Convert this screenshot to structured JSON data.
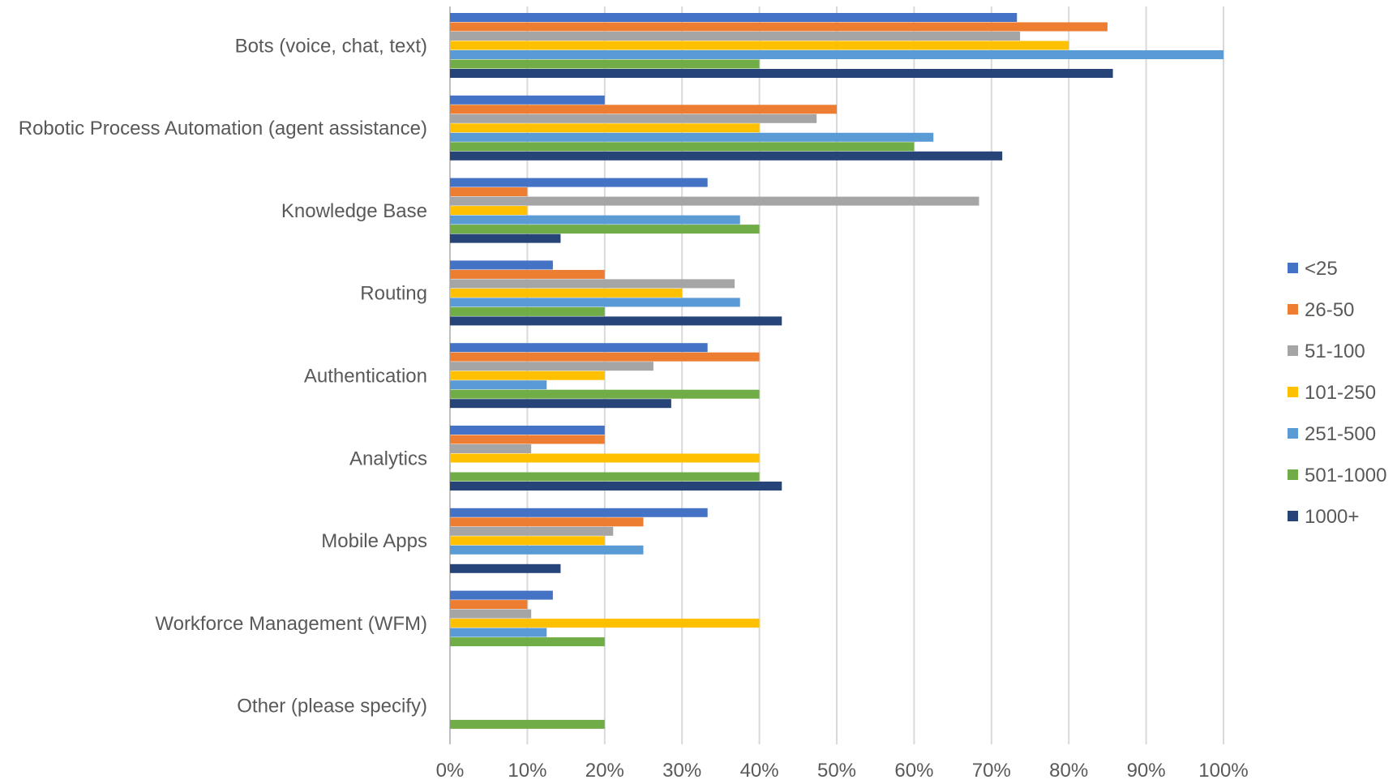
{
  "chart_data": {
    "type": "bar",
    "orientation": "horizontal",
    "title": "",
    "xlabel": "",
    "ylabel": "",
    "xlim": [
      0,
      1
    ],
    "x_ticks": [
      "0%",
      "10%",
      "20%",
      "30%",
      "40%",
      "50%",
      "60%",
      "70%",
      "80%",
      "90%",
      "100%"
    ],
    "grid": true,
    "legend_position": "right",
    "categories": [
      "Bots (voice, chat, text)",
      "Robotic Process Automation (agent assistance)",
      "Knowledge Base",
      "Routing",
      "Authentication",
      "Analytics",
      "Mobile Apps",
      "Workforce Management (WFM)",
      "Other (please specify)"
    ],
    "series": [
      {
        "name": "<25",
        "color": "#4472c4",
        "values": [
          0.733,
          0.2,
          0.333,
          0.133,
          0.333,
          0.2,
          0.333,
          0.133,
          0
        ]
      },
      {
        "name": "26-50",
        "color": "#ed7d31",
        "values": [
          0.85,
          0.5,
          0.1,
          0.2,
          0.4,
          0.2,
          0.25,
          0.1,
          0
        ]
      },
      {
        "name": "51-100",
        "color": "#a5a5a5",
        "values": [
          0.737,
          0.474,
          0.684,
          0.368,
          0.263,
          0.105,
          0.211,
          0.105,
          0
        ]
      },
      {
        "name": "101-250",
        "color": "#ffc000",
        "values": [
          0.8,
          0.4,
          0.1,
          0.3,
          0.2,
          0.4,
          0.2,
          0.4,
          0
        ]
      },
      {
        "name": "251-500",
        "color": "#5b9bd5",
        "values": [
          1.0,
          0.625,
          0.375,
          0.375,
          0.125,
          0,
          0.25,
          0.125,
          0
        ]
      },
      {
        "name": "501-1000",
        "color": "#70ad47",
        "values": [
          0.4,
          0.6,
          0.4,
          0.2,
          0.4,
          0.4,
          0,
          0.2,
          0.2
        ]
      },
      {
        "name": "1000+",
        "color": "#264478",
        "values": [
          0.857,
          0.714,
          0.143,
          0.429,
          0.286,
          0.429,
          0.143,
          0,
          0
        ]
      }
    ]
  }
}
